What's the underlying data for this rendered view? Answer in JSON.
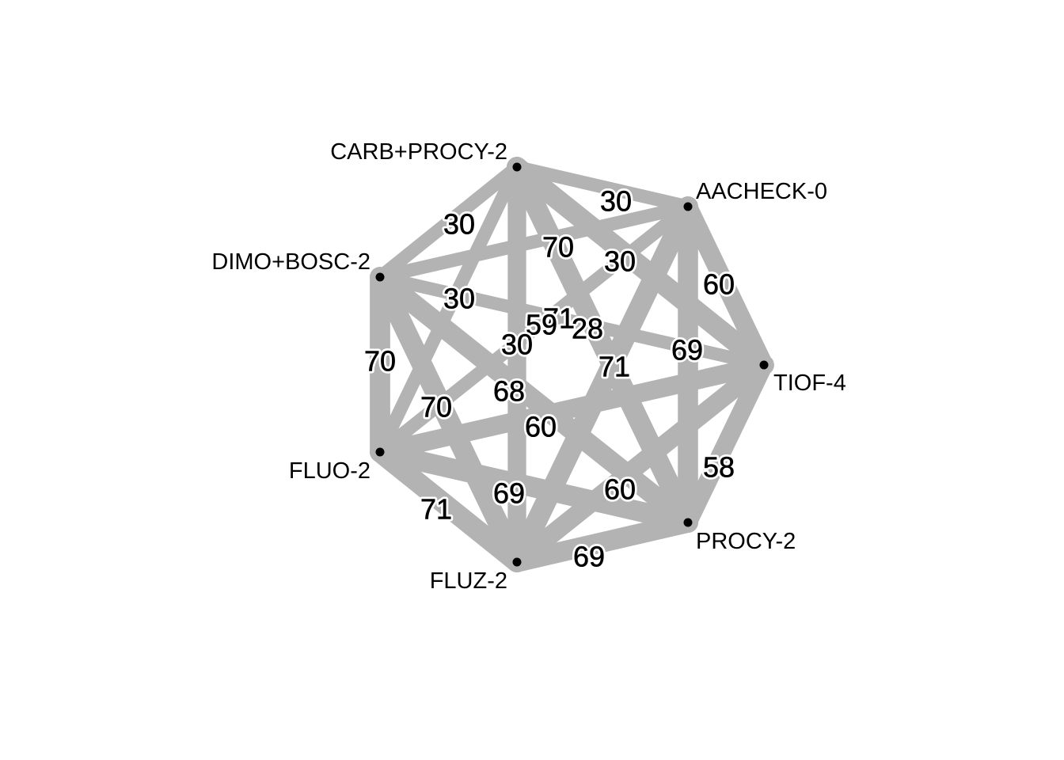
{
  "diagram": {
    "type": "network-graph",
    "colors": {
      "edge": "#b3b3b3",
      "node": "#000000",
      "label": "#000000",
      "halo": "#ffffff"
    },
    "nodes": [
      {
        "id": "carb",
        "label": "CARB+PROCY-2"
      },
      {
        "id": "aacheck",
        "label": "AACHECK-0"
      },
      {
        "id": "tiof",
        "label": "TIOF-4"
      },
      {
        "id": "procy",
        "label": "PROCY-2"
      },
      {
        "id": "fluz",
        "label": "FLUZ-2"
      },
      {
        "id": "fluo",
        "label": "FLUO-2"
      },
      {
        "id": "dimo",
        "label": "DIMO+BOSC-2"
      }
    ],
    "edges": [
      {
        "source": "carb",
        "target": "aacheck",
        "weight": 30
      },
      {
        "source": "carb",
        "target": "dimo",
        "weight": 30
      },
      {
        "source": "carb",
        "target": "tiof",
        "weight": 70
      },
      {
        "source": "carb",
        "target": "procy",
        "weight": 71
      },
      {
        "source": "carb",
        "target": "fluz",
        "weight": 59
      },
      {
        "source": "carb",
        "target": "fluo",
        "weight": 30
      },
      {
        "source": "aacheck",
        "target": "tiof",
        "weight": 60
      },
      {
        "source": "aacheck",
        "target": "procy",
        "weight": 69
      },
      {
        "source": "aacheck",
        "target": "fluz",
        "weight": 71
      },
      {
        "source": "aacheck",
        "target": "fluo",
        "weight": 30
      },
      {
        "source": "aacheck",
        "target": "dimo",
        "weight": 30
      },
      {
        "source": "tiof",
        "target": "procy",
        "weight": 58
      },
      {
        "source": "tiof",
        "target": "fluz",
        "weight": 60
      },
      {
        "source": "tiof",
        "target": "fluo",
        "weight": 60
      },
      {
        "source": "tiof",
        "target": "dimo",
        "weight": 28
      },
      {
        "source": "procy",
        "target": "fluz",
        "weight": 69
      },
      {
        "source": "procy",
        "target": "fluo",
        "weight": 69
      },
      {
        "source": "procy",
        "target": "dimo",
        "weight": 68
      },
      {
        "source": "fluz",
        "target": "fluo",
        "weight": 71
      },
      {
        "source": "fluz",
        "target": "dimo",
        "weight": 70
      },
      {
        "source": "fluo",
        "target": "dimo",
        "weight": 70
      }
    ]
  }
}
